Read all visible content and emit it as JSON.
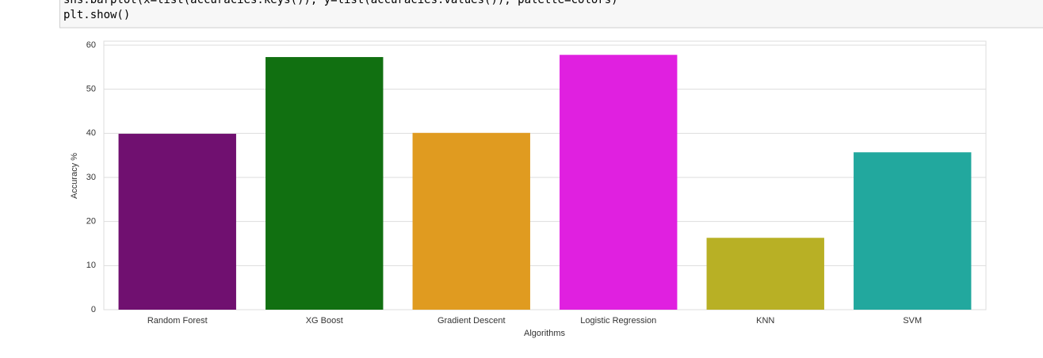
{
  "code": [
    "sns.barplot(x=list(accuracies.keys()), y=list(accuracies.values()), palette=colors)",
    "plt.show()"
  ],
  "chart_data": {
    "type": "bar",
    "x_label": "Algorithms",
    "y_label": "Accuracy %",
    "categories": [
      "Random Forest",
      "XG Boost",
      "Gradient Descent",
      "Logistic Regression",
      "KNN",
      "SVM"
    ],
    "values": [
      39.9,
      57.3,
      40.1,
      57.8,
      16.3,
      35.7
    ],
    "colors": [
      "#701070",
      "#117011",
      "#e09b20",
      "#e020e0",
      "#b8b025",
      "#22a89e"
    ],
    "ylim": [
      0,
      60.9
    ],
    "yticks": [
      0,
      10,
      20,
      30,
      40,
      50,
      60
    ],
    "grid": true
  }
}
